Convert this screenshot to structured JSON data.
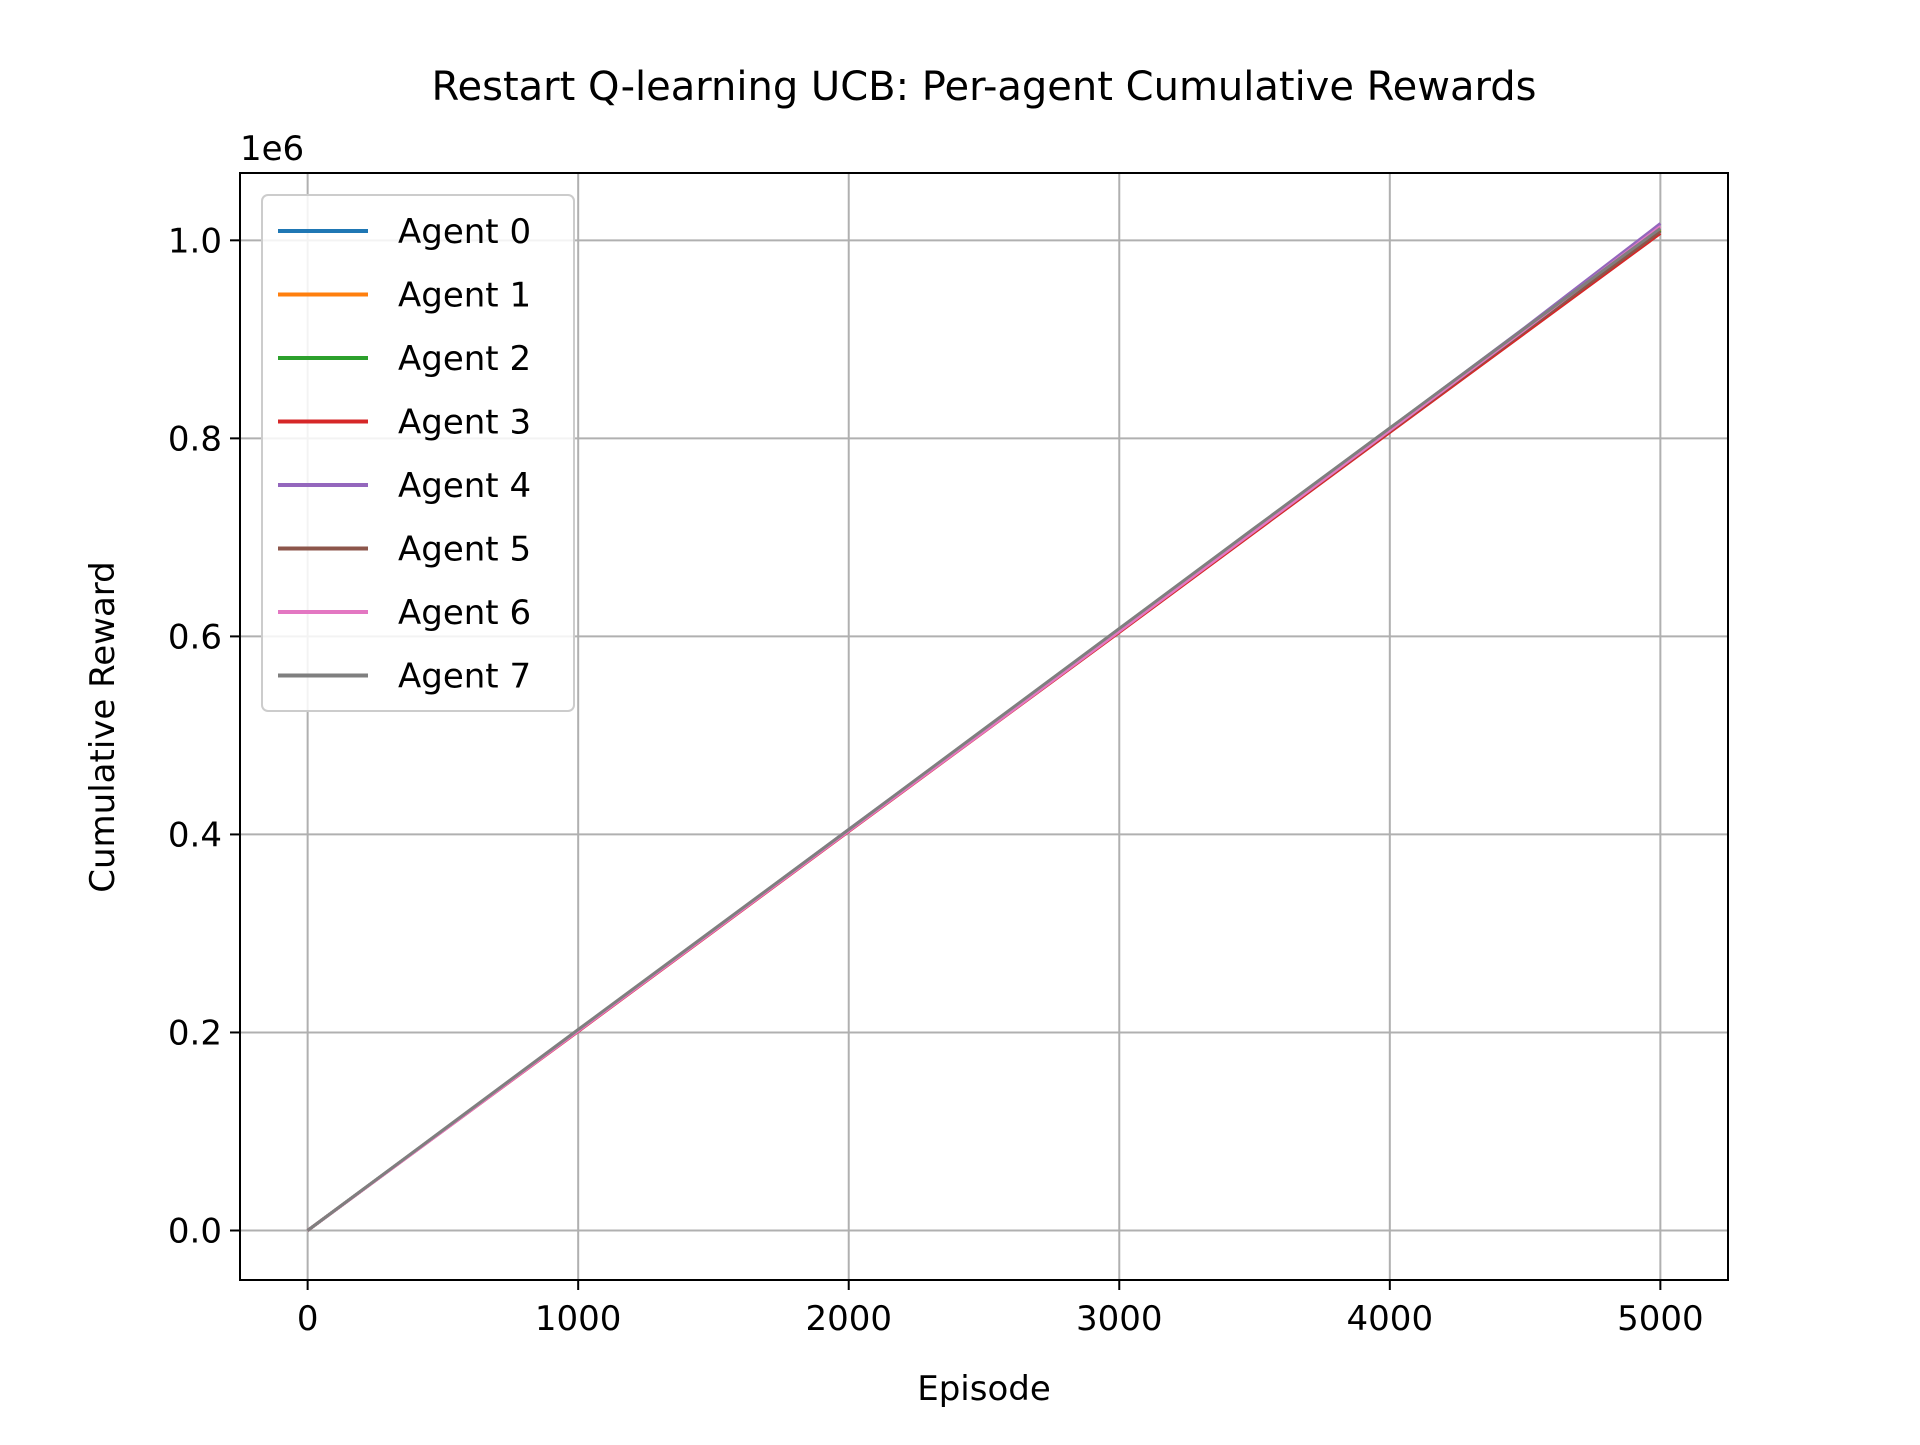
{
  "chart_data": {
    "type": "line",
    "title": "Restart Q-learning UCB: Per-agent Cumulative Rewards",
    "xlabel": "Episode",
    "ylabel": "Cumulative Reward",
    "y_offset_label": "1e6",
    "y_scale_factor": 1000000,
    "xlim": [
      -250,
      5250
    ],
    "ylim": [
      -50000,
      1068000
    ],
    "xticks": [
      0,
      1000,
      2000,
      3000,
      4000,
      5000
    ],
    "xtick_labels": [
      "0",
      "1000",
      "2000",
      "3000",
      "4000",
      "5000"
    ],
    "yticks": [
      0,
      200000,
      400000,
      600000,
      800000,
      1000000
    ],
    "ytick_labels": [
      "0.0",
      "0.2",
      "0.4",
      "0.6",
      "0.8",
      "1.0"
    ],
    "grid": true,
    "legend_position": "top-left",
    "x": [
      0,
      500,
      1000,
      1500,
      2000,
      2500,
      3000,
      3500,
      4000,
      4500,
      5000
    ],
    "series": [
      {
        "name": "Agent 0",
        "color": "#1f77b4",
        "values": [
          0,
          101000,
          202000,
          303000,
          404000,
          505000,
          606000,
          707000,
          808000,
          909000,
          1010000
        ]
      },
      {
        "name": "Agent 1",
        "color": "#ff7f0e",
        "values": [
          0,
          101000,
          202000,
          303000,
          404000,
          505000,
          606000,
          707000,
          808000,
          909500,
          1011000
        ]
      },
      {
        "name": "Agent 2",
        "color": "#2ca02c",
        "values": [
          0,
          101000,
          202000,
          303000,
          404000,
          505000,
          606000,
          707000,
          808000,
          909000,
          1010000
        ]
      },
      {
        "name": "Agent 3",
        "color": "#d62728",
        "values": [
          0,
          100500,
          201000,
          302000,
          403000,
          503500,
          604000,
          705000,
          806000,
          906500,
          1007000
        ]
      },
      {
        "name": "Agent 4",
        "color": "#9467bd",
        "values": [
          0,
          101000,
          202500,
          303500,
          405000,
          506000,
          607500,
          709000,
          810000,
          912000,
          1017000
        ]
      },
      {
        "name": "Agent 5",
        "color": "#8c564b",
        "values": [
          0,
          101000,
          202000,
          303000,
          404000,
          505000,
          606000,
          706500,
          807500,
          908500,
          1009000
        ]
      },
      {
        "name": "Agent 6",
        "color": "#e377c2",
        "values": [
          0,
          100500,
          201500,
          302500,
          403500,
          504000,
          605000,
          706500,
          808000,
          910000,
          1014000
        ]
      },
      {
        "name": "Agent 7",
        "color": "#7f7f7f",
        "values": [
          0,
          101500,
          203000,
          304000,
          405000,
          506500,
          608000,
          709500,
          810500,
          911500,
          1012000
        ]
      }
    ]
  }
}
